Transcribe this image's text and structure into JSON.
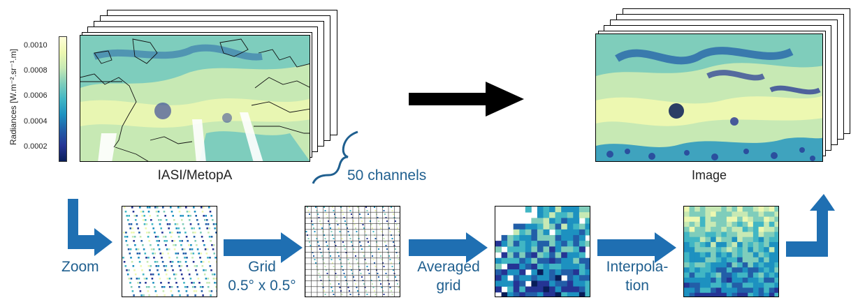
{
  "colorbar": {
    "label": "Radiances [W.m⁻².sr⁻¹.m]",
    "ticks": [
      "0.0010",
      "0.0008",
      "0.0006",
      "0.0004",
      "0.0002"
    ],
    "range": [
      7e-05,
      0.00108
    ],
    "colormap": [
      "#081d58",
      "#253494",
      "#225ea8",
      "#1d91c0",
      "#41b6c4",
      "#7fcdbb",
      "#c7e9b4",
      "#edf8b1",
      "#ffffd9"
    ]
  },
  "top_left": {
    "caption": "IASI/MetopA"
  },
  "top_right": {
    "caption": "Image"
  },
  "channels": {
    "label": "50 channels"
  },
  "pipeline": {
    "steps": [
      {
        "label": "Zoom"
      },
      {
        "label_line1": "Grid",
        "label_line2": "0.5° x 0.5°"
      },
      {
        "label_line1": "Averaged",
        "label_line2": "grid"
      },
      {
        "label_line1": "Interpola-",
        "label_line2": "tion"
      }
    ]
  },
  "colors": {
    "flow_blue": "#1f6fb2",
    "text_blue": "#1f5f8f",
    "arrow_black": "#000000"
  }
}
